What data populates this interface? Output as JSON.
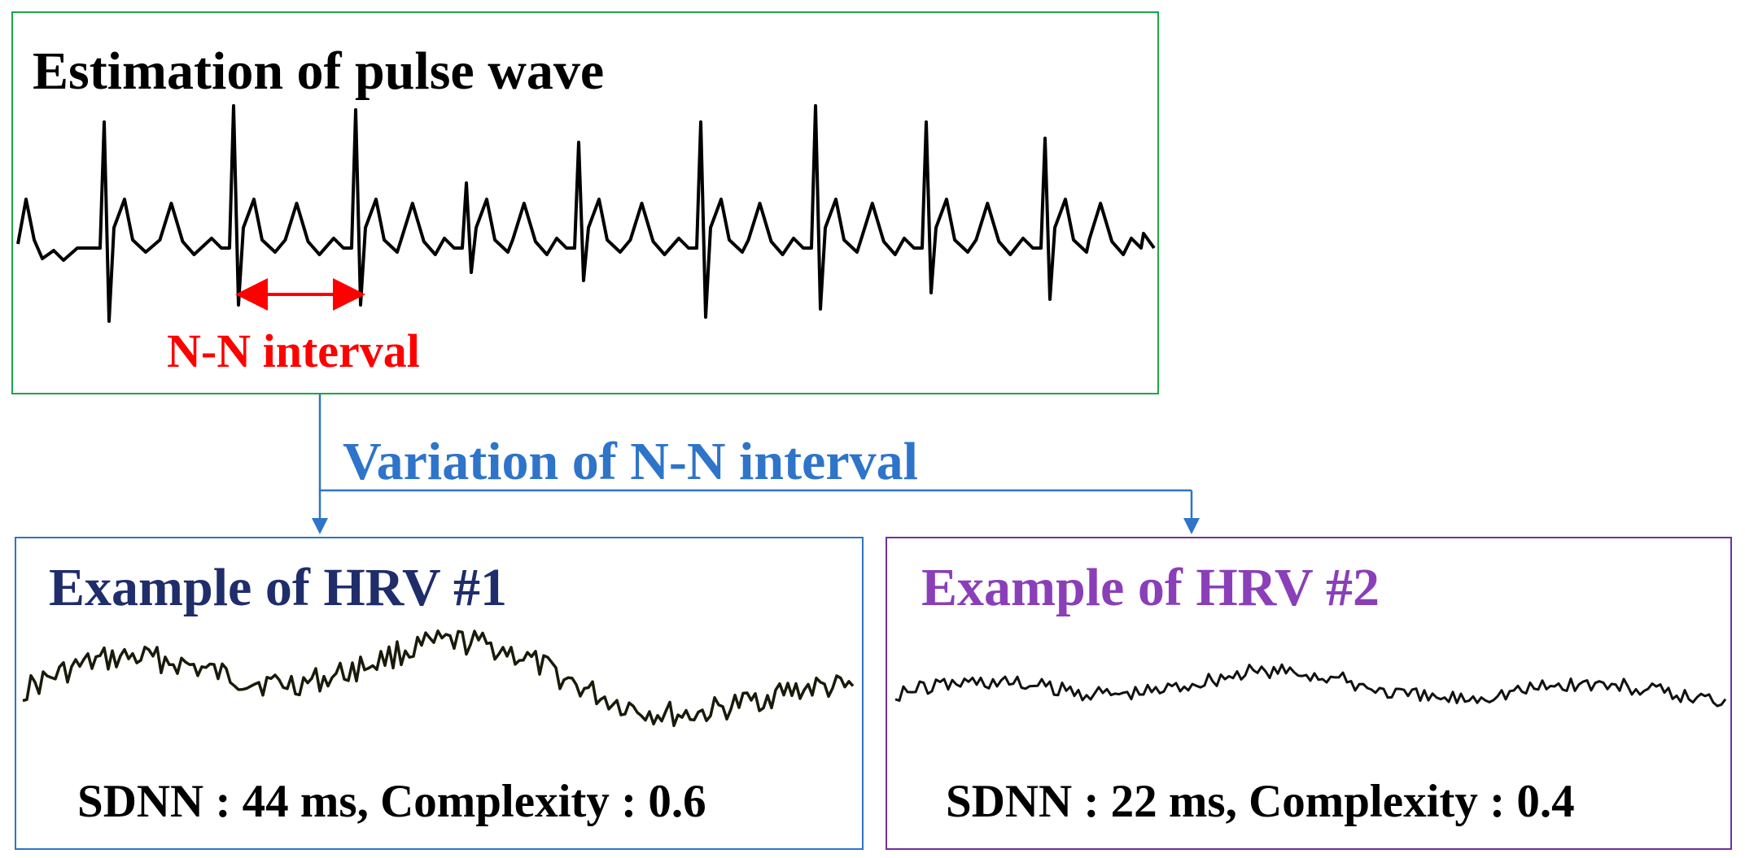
{
  "pulse_panel": {
    "title": "Estimation of pulse wave",
    "interval_label": "N-N interval",
    "interval_color": "#ff0000",
    "border_color": "#1aa64a"
  },
  "connector": {
    "label": "Variation of N-N interval",
    "color": "#2e74c9"
  },
  "hrv1": {
    "title": "Example of HRV #1",
    "title_color": "#1f2d6b",
    "stats": "SDNN : 44 ms, Complexity : 0.6",
    "border_color": "#2e74c9"
  },
  "hrv2": {
    "title": "Example of HRV #2",
    "title_color": "#8a3fb8",
    "stats": "SDNN : 22 ms, Complexity : 0.4",
    "border_color": "#7030a0"
  }
}
